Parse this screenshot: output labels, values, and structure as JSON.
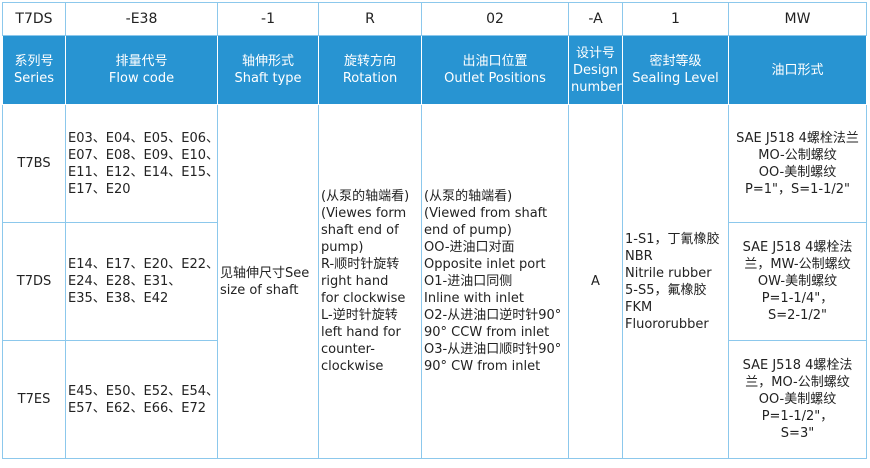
{
  "codes": [
    "T7DS",
    "-E38",
    "-1",
    "R",
    "02",
    "-A",
    "1",
    "MW"
  ],
  "headers": [
    [
      "系列号",
      "Series"
    ],
    [
      "排量代号",
      "Flow code"
    ],
    [
      "轴伸形式",
      "Shaft type"
    ],
    [
      "旋转方向",
      "Rotation"
    ],
    [
      "出油口位置",
      "Outlet Positions"
    ],
    [
      "设计号",
      "Design",
      "number"
    ],
    [
      "密封等级",
      "Sealing Level"
    ],
    [
      "油口形式"
    ]
  ],
  "rows": [
    {
      "series": "T7BS",
      "flow": [
        "E03、E04、E05、E06、",
        "E07、E08、E09、E10、",
        "E11、E12、E14、E15、",
        "E17、E20"
      ],
      "port": [
        "SAE J518 4螺栓法兰",
        "MO-公制螺纹",
        "OO-美制螺纹",
        "P=1\"，S=1-1/2\""
      ]
    },
    {
      "series": "T7DS",
      "flow": [
        "E14、E17、E20、E22、",
        "E24、E28、E31、",
        "E35、E38、E42"
      ],
      "port": [
        "SAE J518 4螺栓法",
        "兰，MW-公制螺纹",
        "OW-美制螺纹",
        "P=1-1/4\"，",
        "S=2-1/2\""
      ]
    },
    {
      "series": "T7ES",
      "flow": [
        "E45、E50、E52、E54、",
        "E57、E62、E66、E72"
      ],
      "port": [
        "SAE J518 4螺栓法",
        "兰，MO-公制螺纹",
        "OO-美制螺纹",
        "P=1-1/2\"，",
        "S=3\""
      ]
    }
  ],
  "shaft": [
    "见轴伸尺寸See",
    "size of shaft"
  ],
  "rotation": [
    "(从泵的轴端看)",
    "(Viewes form",
    "shaft end of",
    "pump)",
    "R-顺时针旋转",
    "right hand",
    "for clockwise",
    "L-逆时针旋转",
    "left hand for",
    "counter-",
    "clockwise"
  ],
  "outlet": [
    "(从泵的轴端看)",
    "(Viewed from shaft",
    "end of pump)",
    "OO-进油口对面",
    "Opposite inlet port",
    "O1-进油口同侧",
    "Inline with inlet",
    "O2-从进油口逆时针90°",
    "90° CCW from inlet",
    "O3-从进油口顺时针90°",
    "90° CW from inlet"
  ],
  "design": [
    "A"
  ],
  "sealing": [
    "1-S1，丁氰橡胶",
    "NBR",
    "Nitrile rubber",
    "5-S5，氟橡胶",
    "FKM",
    "Fluororubber"
  ]
}
